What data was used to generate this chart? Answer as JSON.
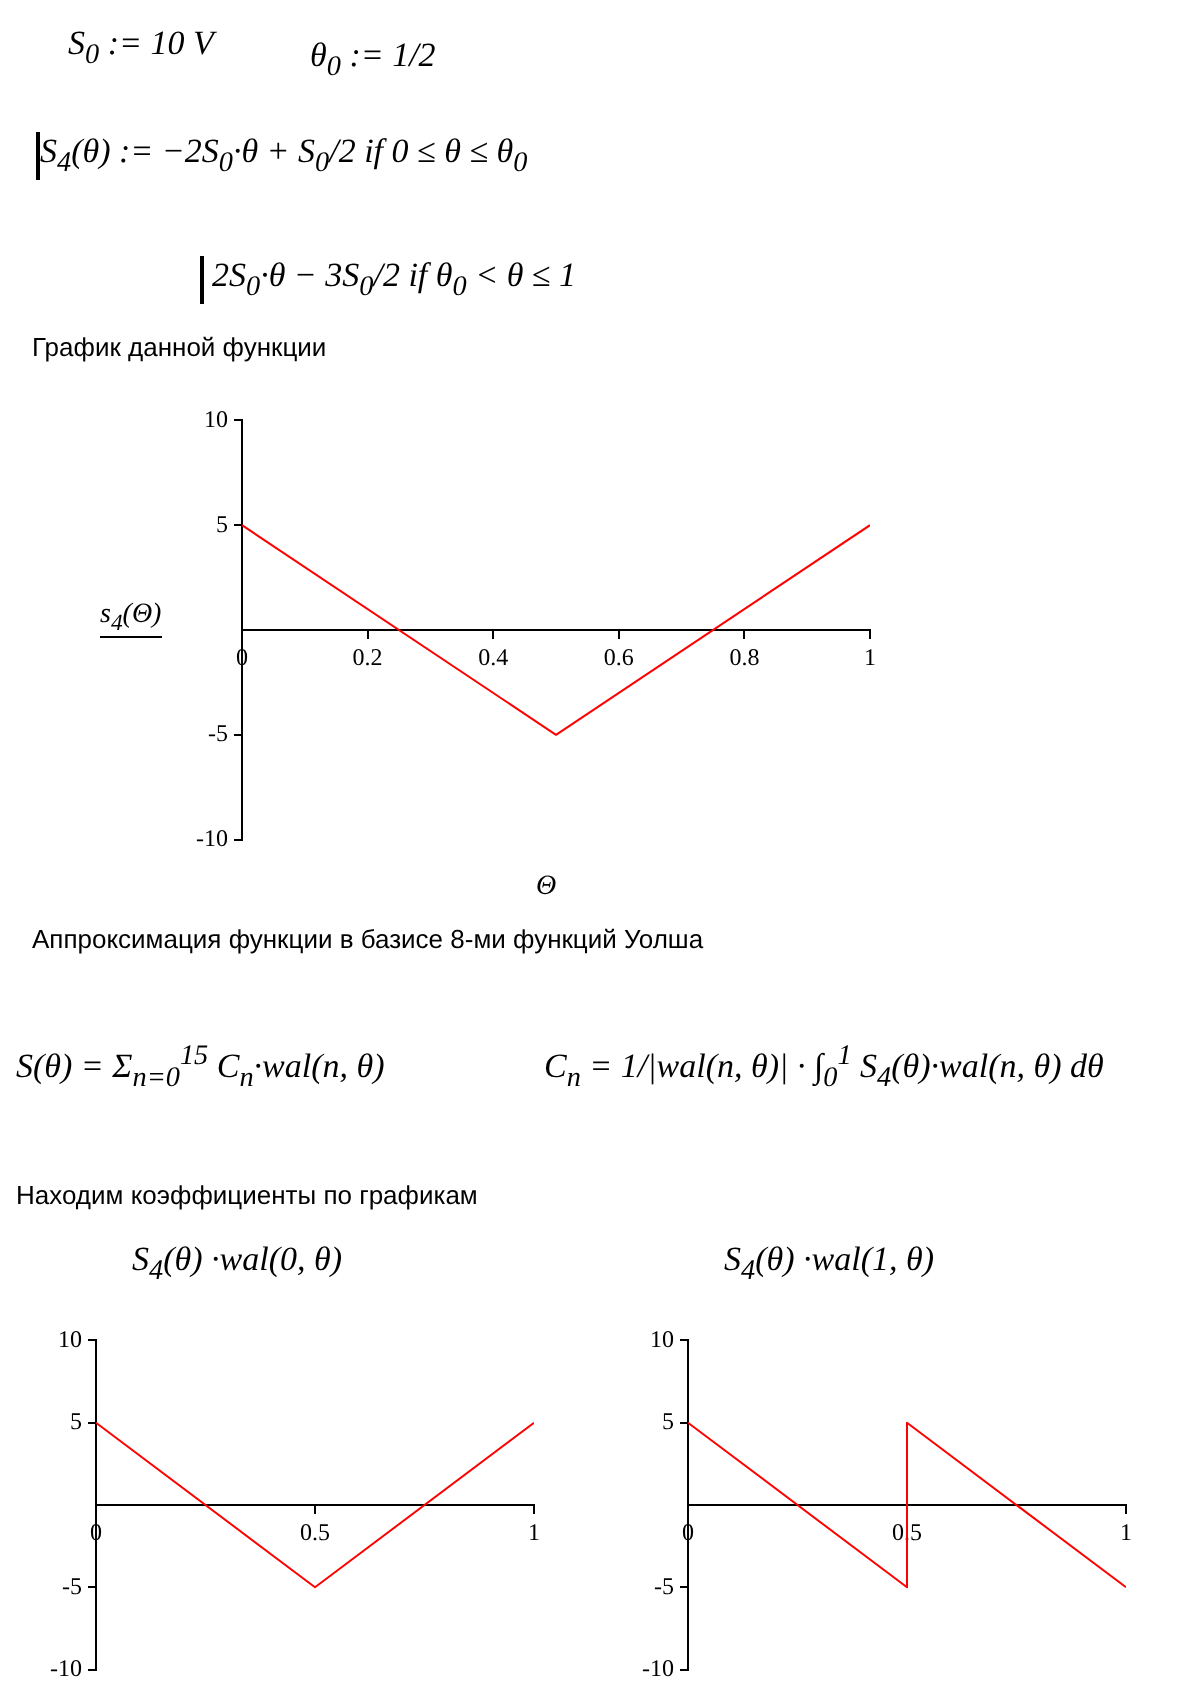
{
  "chart_data": [
    {
      "type": "line",
      "title": "График данной функции",
      "xlabel": "Θ",
      "ylabel": "s$_{4}$(Θ)",
      "annotations": [
        "S$_{0}$ := 10 V",
        "θ$_{0}$ := 1/2",
        "S$_{4}$(θ) := −2S$_{0}$·θ + S$_{0}$/2  if 0 ≤ θ ≤ θ$_{0}$",
        "2S$_{0}$·θ − 3S$_{0}$/2  if θ$_{0}$ < θ ≤ 1"
      ],
      "x": [
        0,
        0.5,
        1
      ],
      "series": [
        {
          "color": "#ff0000",
          "values": [
            5,
            -5,
            5
          ]
        }
      ],
      "xlim": [
        0,
        1
      ],
      "ylim": [
        -10,
        10
      ],
      "xticks": [
        0,
        0.2,
        0.4,
        0.6,
        0.8,
        1
      ],
      "yticks": [
        -10,
        -5,
        5,
        10
      ]
    },
    {
      "type": "line",
      "title": "S$_{4}$(θ) ·wal(0, θ)",
      "annotations": [
        "Аппроксимация функции в базисе 8-ми функций Уолша",
        "S(θ) = Σ$_{n=0}$$^{15}$ C$_{n}$·wal(n, θ)",
        "C$_{n}$ = 1/|wal(n, θ)| · ∫$_{0}$$^{1}$ S$_{4}$(θ)·wal(n, θ) dθ",
        "Находим коэффициенты по графикам"
      ],
      "x": [
        0,
        0.5,
        1
      ],
      "series": [
        {
          "color": "#ff0000",
          "values": [
            5,
            -5,
            5
          ]
        }
      ],
      "xlim": [
        0,
        1
      ],
      "ylim": [
        -10,
        10
      ],
      "xticks": [
        0,
        0.5,
        1
      ],
      "yticks": [
        -10,
        -5,
        5,
        10
      ]
    },
    {
      "type": "line",
      "title": "S$_{4}$(θ) ·wal(1, θ)",
      "x": [
        0,
        0.5,
        0.5,
        1
      ],
      "series": [
        {
          "color": "#ff0000",
          "values": [
            5,
            -5,
            5,
            -5
          ]
        }
      ],
      "xlim": [
        0,
        1
      ],
      "ylim": [
        -10,
        10
      ],
      "xticks": [
        0,
        0.5,
        1
      ],
      "yticks": [
        -10,
        -5,
        5,
        10
      ]
    }
  ]
}
